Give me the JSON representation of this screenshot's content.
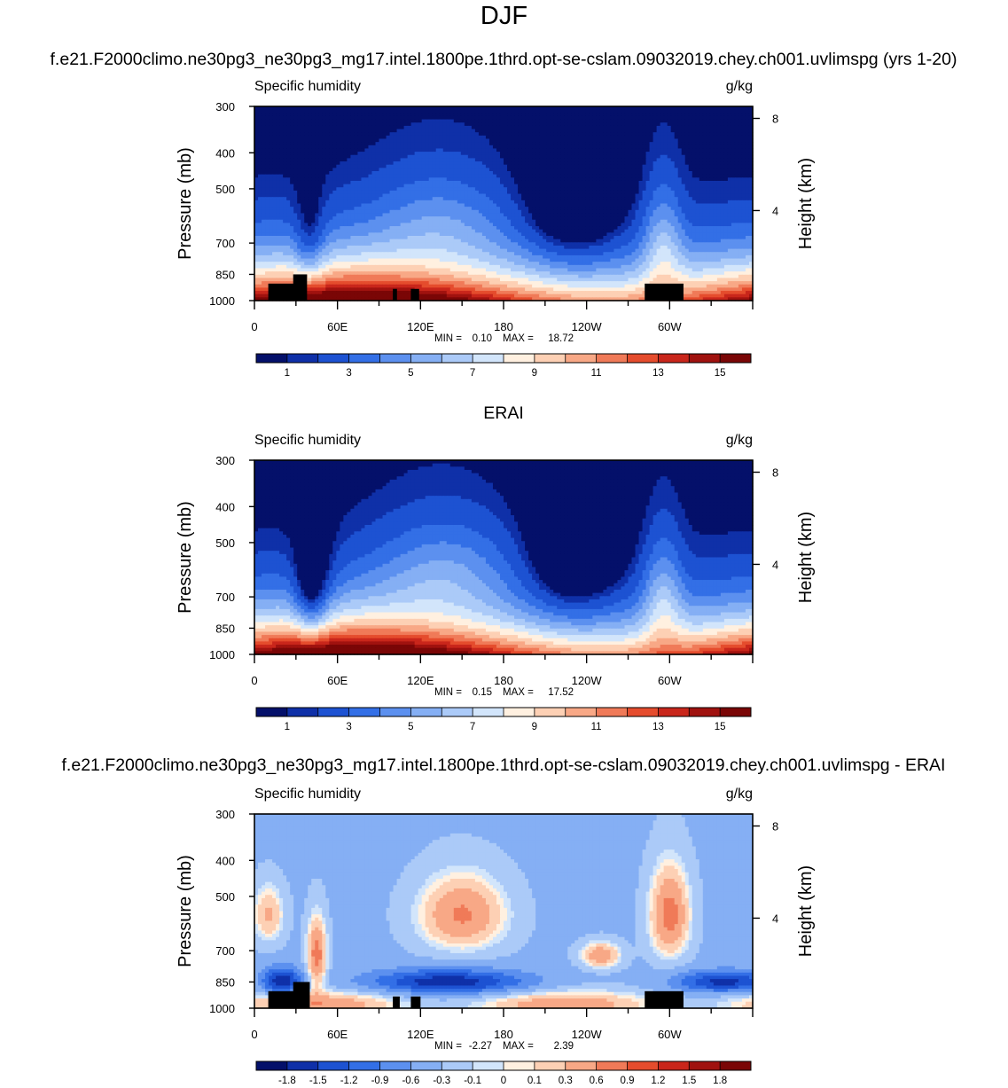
{
  "figure": {
    "title": "DJF",
    "colors": {
      "abs": [
        "#04106a",
        "#0f30a8",
        "#1d52d2",
        "#336fe6",
        "#5c90ef",
        "#85aff4",
        "#abcaf8",
        "#d2e5fb",
        "#fff0e0",
        "#fdd0b4",
        "#f8a886",
        "#f07a58",
        "#e54c2d",
        "#c9261b",
        "#a0120f",
        "#7a0606"
      ],
      "diff": [
        "#04106a",
        "#0f30a8",
        "#1d52d2",
        "#336fe6",
        "#5c90ef",
        "#85aff4",
        "#abcaf8",
        "#d2e5fb",
        "#fff0e0",
        "#fdd0b4",
        "#f8a886",
        "#f07a58",
        "#e54c2d",
        "#c9261b",
        "#a0120f",
        "#7a0606"
      ]
    }
  },
  "chart_data": [
    {
      "type": "heatmap",
      "panel_title": "f.e21.F2000climo.ne30pg3_ne30pg3_mg17.intel.1800pe.1thrd.opt-se-cslam.09032019.chey.ch001.uvlimspg (yrs 1-20)",
      "left_label": "Specific humidity",
      "right_label": "g/kg",
      "ylabel": "Pressure (mb)",
      "ylabel_right": "Height (km)",
      "x_ticks": [
        "0",
        "60E",
        "120E",
        "180",
        "120W",
        "60W"
      ],
      "x_tick_lon": [
        0,
        60,
        120,
        180,
        240,
        300
      ],
      "xlim_lon": [
        0,
        360
      ],
      "y_ticks": [
        "300",
        "400",
        "500",
        "700",
        "850",
        "1000"
      ],
      "y_tick_p": [
        300,
        400,
        500,
        700,
        850,
        1000
      ],
      "ylim_p": [
        300,
        1000
      ],
      "log_pressure": true,
      "height_ticks": [
        "8",
        "4"
      ],
      "height_tick_km": [
        8,
        4
      ],
      "min_label": "MIN =",
      "min_value": "0.10",
      "max_label": "MAX =",
      "max_value": "18.72",
      "colorbar_labels": [
        "1",
        "3",
        "5",
        "7",
        "9",
        "11",
        "13",
        "15"
      ],
      "levels": [
        0.5,
        1,
        2,
        3,
        4,
        5,
        6,
        7,
        8,
        9,
        10,
        11,
        12,
        13,
        14,
        15
      ],
      "terrain": [
        [
          10,
          900,
          34
        ],
        [
          28,
          850,
          38
        ],
        [
          100,
          930,
          103
        ],
        [
          113,
          930,
          119
        ],
        [
          282,
          900,
          310
        ]
      ]
    },
    {
      "type": "heatmap",
      "panel_title": "ERAI",
      "left_label": "Specific humidity",
      "right_label": "g/kg",
      "ylabel": "Pressure (mb)",
      "ylabel_right": "Height (km)",
      "x_ticks": [
        "0",
        "60E",
        "120E",
        "180",
        "120W",
        "60W"
      ],
      "x_tick_lon": [
        0,
        60,
        120,
        180,
        240,
        300
      ],
      "xlim_lon": [
        0,
        360
      ],
      "y_ticks": [
        "300",
        "400",
        "500",
        "700",
        "850",
        "1000"
      ],
      "y_tick_p": [
        300,
        400,
        500,
        700,
        850,
        1000
      ],
      "ylim_p": [
        300,
        1000
      ],
      "log_pressure": true,
      "height_ticks": [
        "8",
        "4"
      ],
      "height_tick_km": [
        8,
        4
      ],
      "min_label": "MIN =",
      "min_value": "0.15",
      "max_label": "MAX =",
      "max_value": "17.52",
      "colorbar_labels": [
        "1",
        "3",
        "5",
        "7",
        "9",
        "11",
        "13",
        "15"
      ],
      "levels": [
        0.5,
        1,
        2,
        3,
        4,
        5,
        6,
        7,
        8,
        9,
        10,
        11,
        12,
        13,
        14,
        15
      ],
      "terrain": []
    },
    {
      "type": "heatmap",
      "panel_title": "f.e21.F2000climo.ne30pg3_ne30pg3_mg17.intel.1800pe.1thrd.opt-se-cslam.09032019.chey.ch001.uvlimspg - ERAI",
      "left_label": "Specific humidity",
      "right_label": "g/kg",
      "ylabel": "Pressure (mb)",
      "ylabel_right": "Height (km)",
      "x_ticks": [
        "0",
        "60E",
        "120E",
        "180",
        "120W",
        "60W"
      ],
      "x_tick_lon": [
        0,
        60,
        120,
        180,
        240,
        300
      ],
      "xlim_lon": [
        0,
        360
      ],
      "y_ticks": [
        "300",
        "400",
        "500",
        "700",
        "850",
        "1000"
      ],
      "y_tick_p": [
        300,
        400,
        500,
        700,
        850,
        1000
      ],
      "ylim_p": [
        300,
        1000
      ],
      "log_pressure": true,
      "height_ticks": [
        "8",
        "4"
      ],
      "height_tick_km": [
        8,
        4
      ],
      "min_label": "MIN =",
      "min_value": "-2.27",
      "max_label": "MAX =",
      "max_value": "2.39",
      "colorbar_labels": [
        "-1.8",
        "-1.5",
        "-1.2",
        "-0.9",
        "-0.6",
        "-0.3",
        "-0.1",
        "0",
        "0.1",
        "0.3",
        "0.6",
        "0.9",
        "1.2",
        "1.5",
        "1.8"
      ],
      "levels": [
        -1.8,
        -1.5,
        -1.2,
        -0.9,
        -0.6,
        -0.3,
        -0.1,
        0,
        0.1,
        0.3,
        0.6,
        0.9,
        1.2,
        1.5,
        1.8
      ],
      "terrain": [
        [
          10,
          900,
          36
        ],
        [
          28,
          850,
          40
        ],
        [
          100,
          930,
          105
        ],
        [
          113,
          930,
          120
        ],
        [
          282,
          900,
          310
        ]
      ]
    }
  ]
}
